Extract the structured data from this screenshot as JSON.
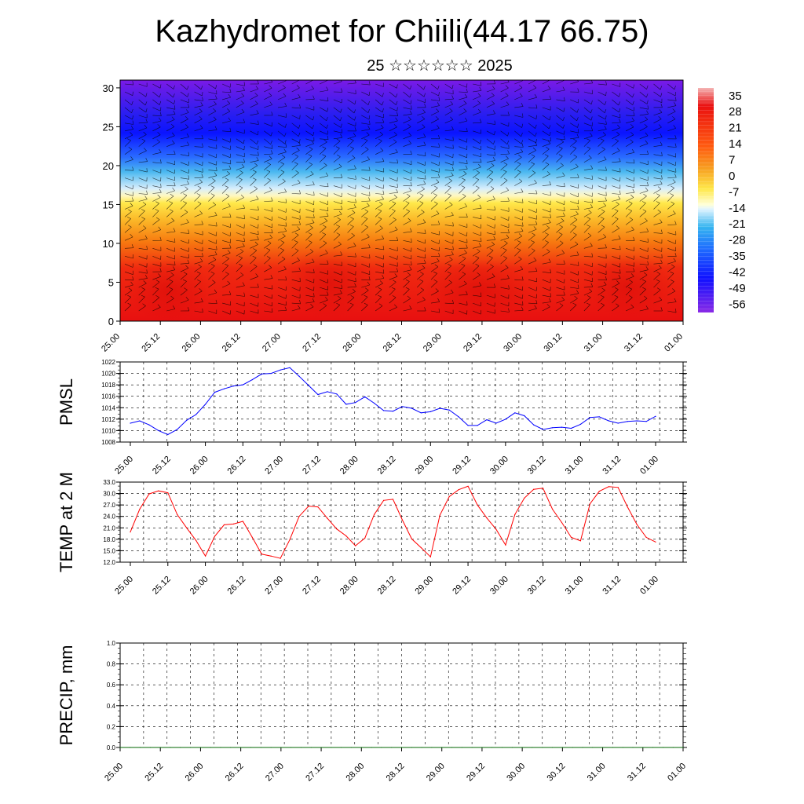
{
  "header": {
    "title": "Kazhydromet for Chiili(44.17 66.75)",
    "subtitle": "25 ☆☆☆☆☆☆ 2025"
  },
  "colors": {
    "pmsl_line": "#0000ff",
    "temp_line": "#ff0000",
    "precip_line": "#006400",
    "grid": "#000000",
    "temp_cold": "#7a1ae6",
    "temp_mid_blue": "#1e4aff",
    "temp_cyan": "#35b4f0",
    "temp_pale": "#e8f6ff",
    "temp_yellow": "#ffe84a",
    "temp_orange": "#f78a10",
    "temp_red": "#ea1010"
  },
  "chart_data": [
    {
      "type": "heatmap",
      "name": "upper-air temperature cross-section with wind barbs",
      "x_tick_labels": [
        "25.00",
        "25.12",
        "26.00",
        "26.12",
        "27.00",
        "27.12",
        "28.00",
        "28.12",
        "29.00",
        "29.12",
        "30.00",
        "30.12",
        "31.00",
        "31.12",
        "01.00"
      ],
      "y_tick_labels": [
        "0",
        "5",
        "10",
        "15",
        "20",
        "25",
        "30"
      ],
      "ylim": [
        0,
        31
      ],
      "colorbar_labels": [
        "35",
        "28",
        "21",
        "14",
        "7",
        "0",
        "-7",
        "-14",
        "-21",
        "-28",
        "-35",
        "-42",
        "-49",
        "-56"
      ],
      "colorbar_range": [
        -60,
        38
      ],
      "layers": [
        {
          "level_range": [
            0,
            9
          ],
          "value": 30
        },
        {
          "level_range": [
            9,
            13
          ],
          "value": 18
        },
        {
          "level_range": [
            13,
            16
          ],
          "value": 0
        },
        {
          "level_range": [
            16,
            18
          ],
          "value": -18
        },
        {
          "level_range": [
            18,
            21
          ],
          "value": -35
        },
        {
          "level_range": [
            21,
            27
          ],
          "value": -56
        },
        {
          "level_range": [
            27,
            31
          ],
          "value": -52
        }
      ]
    },
    {
      "type": "line",
      "ylabel": "PMSL",
      "ylim": [
        1008,
        1022
      ],
      "y_tick_labels": [
        "1008",
        "1010",
        "1012",
        "1014",
        "1016",
        "1018",
        "1020",
        "1022"
      ],
      "x_tick_labels": [
        "25.00",
        "25.12",
        "26.00",
        "26.12",
        "27.00",
        "27.12",
        "28.00",
        "28.12",
        "29.00",
        "29.12",
        "30.00",
        "30.12",
        "31.00",
        "31.12",
        "01.00"
      ],
      "series": [
        {
          "values": [
            1011.3,
            1011.7,
            1011.0,
            1010.0,
            1009.3,
            1010.2,
            1011.8,
            1012.8,
            1014.6,
            1016.7,
            1017.3,
            1017.8,
            1018.0,
            1018.9,
            1019.9,
            1020.0,
            1020.6,
            1021.0,
            1019.5,
            1017.9,
            1016.3,
            1016.8,
            1016.4,
            1014.6,
            1014.9,
            1015.9,
            1014.8,
            1013.5,
            1013.4,
            1014.2,
            1013.9,
            1013.1,
            1013.3,
            1013.9,
            1013.6,
            1012.4,
            1010.9,
            1010.9,
            1011.9,
            1011.3,
            1012.0,
            1013.1,
            1012.6,
            1011.0,
            1010.2,
            1010.5,
            1010.6,
            1010.4,
            1011.1,
            1012.3,
            1012.4,
            1011.7,
            1011.3,
            1011.6,
            1011.7,
            1011.6,
            1012.5
          ]
        }
      ]
    },
    {
      "type": "line",
      "ylabel": "TEMP at 2 M",
      "ylim": [
        12.0,
        33.0
      ],
      "y_tick_labels": [
        "12.0",
        "15.0",
        "18.0",
        "21.0",
        "24.0",
        "27.0",
        "30.0",
        "33.0"
      ],
      "x_tick_labels": [
        "25.00",
        "25.12",
        "26.00",
        "26.12",
        "27.00",
        "27.12",
        "28.00",
        "28.12",
        "29.00",
        "29.12",
        "30.00",
        "30.12",
        "31.00",
        "31.12",
        "01.00"
      ],
      "series": [
        {
          "values": [
            19.9,
            25.9,
            29.9,
            30.7,
            30.2,
            24.5,
            21.0,
            17.7,
            13.6,
            18.8,
            21.8,
            22.0,
            22.7,
            18.5,
            14.1,
            13.6,
            13.0,
            17.9,
            24.0,
            26.7,
            26.5,
            23.5,
            20.7,
            18.9,
            16.3,
            18.3,
            24.5,
            28.2,
            28.5,
            23.1,
            18.1,
            15.8,
            13.4,
            24.3,
            29.2,
            31.0,
            31.9,
            27.0,
            23.6,
            20.6,
            16.5,
            24.5,
            28.8,
            31.1,
            31.4,
            25.9,
            22.4,
            18.5,
            17.6,
            27.3,
            30.6,
            31.8,
            31.6,
            26.5,
            21.9,
            18.5,
            17.3
          ]
        }
      ]
    },
    {
      "type": "line",
      "ylabel": "PRECIP, mm",
      "ylim": [
        0.0,
        1.0
      ],
      "y_tick_labels": [
        "0.0",
        "0.2",
        "0.4",
        "0.6",
        "0.8",
        "1.0"
      ],
      "x_tick_labels": [
        "25.00",
        "25.12",
        "26.00",
        "26.12",
        "27.00",
        "27.12",
        "28.00",
        "28.12",
        "29.00",
        "29.12",
        "30.00",
        "30.12",
        "31.00",
        "31.12",
        "01.00"
      ],
      "series": [
        {
          "values": [
            0,
            0,
            0,
            0,
            0,
            0,
            0,
            0,
            0,
            0,
            0,
            0,
            0,
            0,
            0,
            0,
            0,
            0,
            0,
            0,
            0,
            0,
            0,
            0,
            0,
            0,
            0,
            0,
            0,
            0,
            0,
            0,
            0,
            0,
            0,
            0,
            0,
            0,
            0,
            0,
            0,
            0,
            0,
            0,
            0,
            0,
            0,
            0,
            0,
            0,
            0,
            0,
            0,
            0,
            0,
            0,
            0
          ]
        }
      ]
    }
  ]
}
